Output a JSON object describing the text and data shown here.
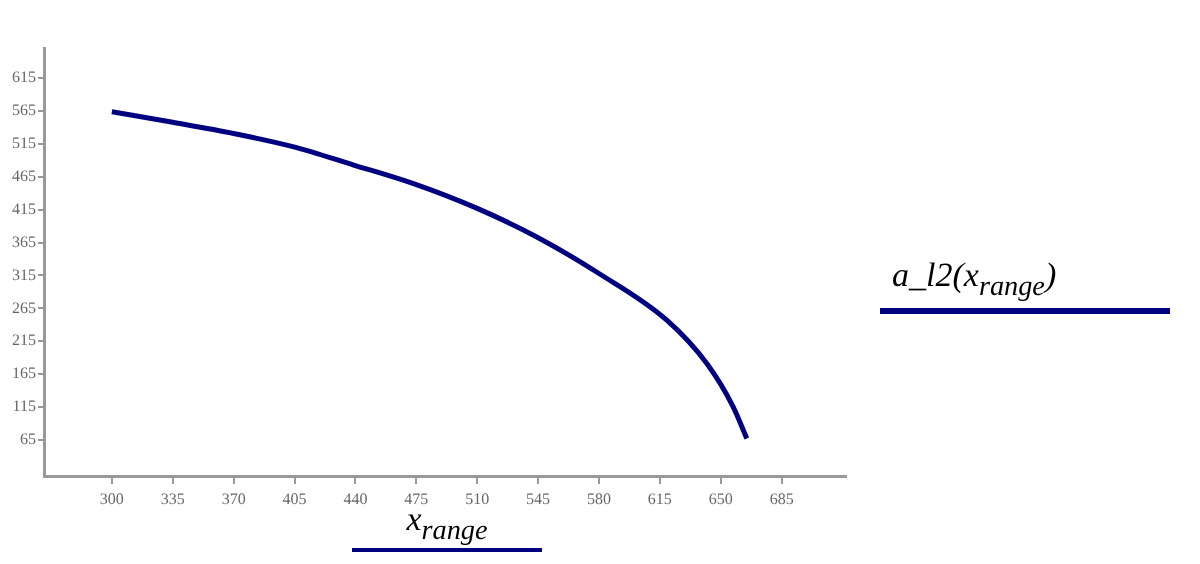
{
  "chart_data": {
    "type": "line",
    "xlabel": "x$_{range}$",
    "x": [
      300,
      335,
      370,
      404,
      439,
      473,
      510,
      544,
      580,
      619,
      642,
      657,
      665
    ],
    "series": [
      {
        "name": "a_l2(x$_{range}$)",
        "color": "#000080",
        "values": [
          564,
          548,
          531,
          511,
          483,
          455,
          417,
          374,
          318,
          247,
          181,
          116,
          67
        ]
      }
    ],
    "xlim": [
      261,
      722
    ],
    "ylim": [
      10,
      661
    ],
    "xticks": [
      300,
      335,
      370,
      405,
      440,
      475,
      510,
      545,
      580,
      615,
      650,
      685
    ],
    "yticks": [
      65,
      115,
      165,
      215,
      265,
      315,
      365,
      415,
      465,
      515,
      565,
      615
    ],
    "grid": false,
    "legend": "right",
    "marker": "none",
    "line_style": "solid"
  }
}
